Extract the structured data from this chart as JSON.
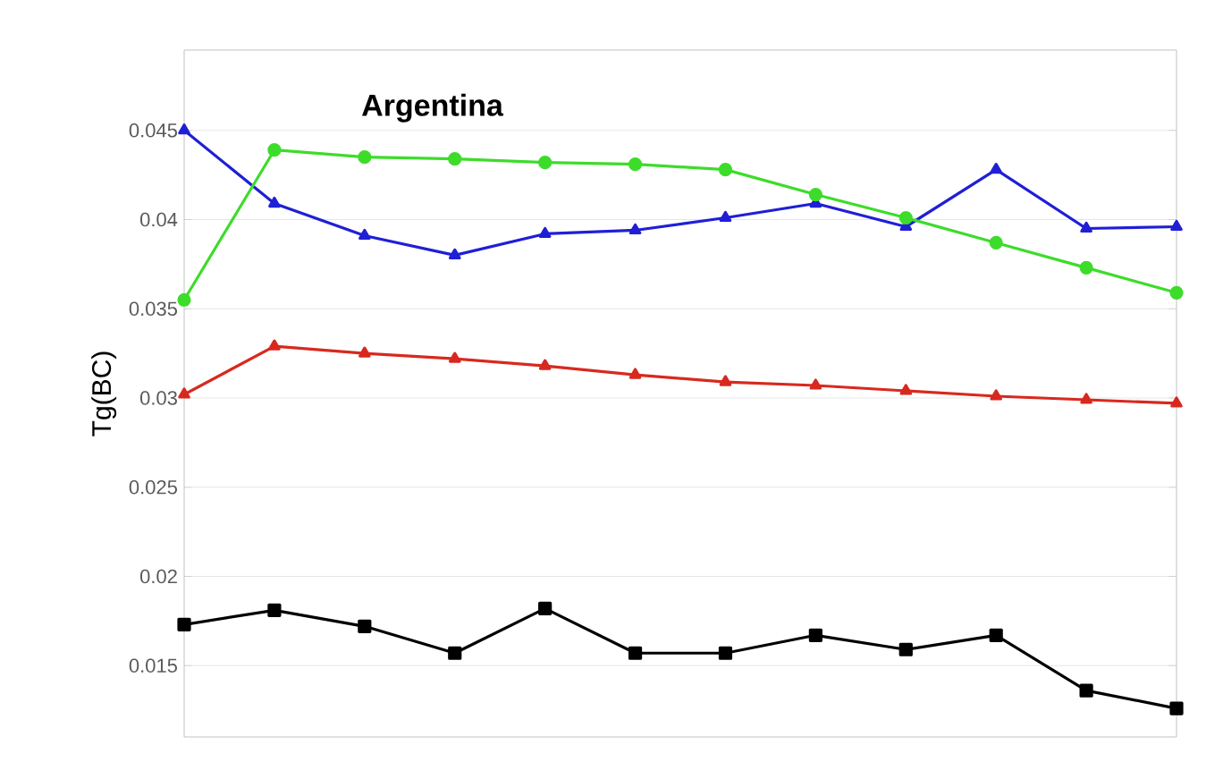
{
  "chart_data": {
    "type": "line",
    "title": "Argentina",
    "ylabel": "Tg(BC)",
    "categories": [
      null,
      null,
      null,
      null,
      null,
      null,
      null,
      null,
      null,
      null,
      null,
      null
    ],
    "ylim": [
      0.011,
      0.0495
    ],
    "yticks": [
      0.015,
      0.02,
      0.025,
      0.03,
      0.035,
      0.04,
      0.045
    ],
    "tick_labels": "y",
    "grid": "y",
    "line_style": "solid",
    "series": [
      {
        "color": "#1f1fd6",
        "marker": "triangle",
        "values": [
          0.045,
          0.0409,
          0.0391,
          0.038,
          0.0392,
          0.0394,
          0.0401,
          0.0409,
          0.0396,
          0.0428,
          0.0395,
          0.0396
        ]
      },
      {
        "color": "#3ddc2a",
        "marker": "circle",
        "values": [
          0.0355,
          0.0439,
          0.0435,
          0.0434,
          0.0432,
          0.0431,
          0.0428,
          0.0414,
          0.0401,
          0.0387,
          0.0373,
          0.0359
        ]
      },
      {
        "color": "#d8291f",
        "marker": "triangle",
        "values": [
          0.0302,
          0.0329,
          0.0325,
          0.0322,
          0.0318,
          0.0313,
          0.0309,
          0.0307,
          0.0304,
          0.0301,
          0.0299,
          0.0297
        ]
      },
      {
        "color": "#000000",
        "marker": "square",
        "values": [
          0.0173,
          0.0181,
          0.0172,
          0.0157,
          0.0182,
          0.0157,
          0.0157,
          0.0167,
          0.0159,
          0.0167,
          0.0136,
          0.0126
        ]
      }
    ]
  }
}
